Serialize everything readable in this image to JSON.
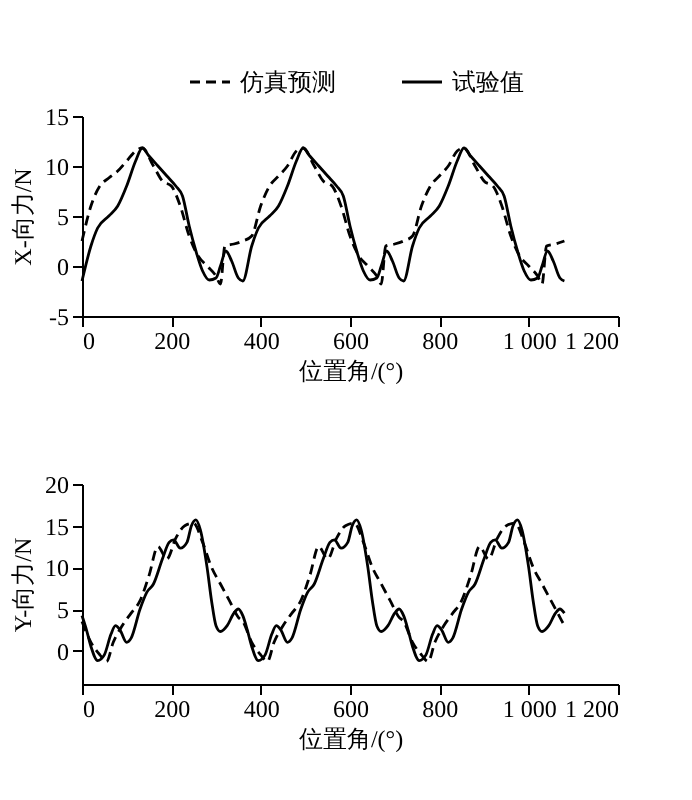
{
  "chart_data": [
    {
      "type": "line",
      "xlabel": "位置角/(°)",
      "ylabel": "X-向力/N",
      "xlim": [
        0,
        1200
      ],
      "xticks": [
        0,
        200,
        400,
        600,
        800,
        {
          "value": 1000,
          "label": "1 000"
        },
        {
          "value": 1200,
          "label": "1 200"
        }
      ],
      "ylim": [
        -5,
        15
      ],
      "yticks": [
        -5,
        0,
        5,
        10,
        15
      ],
      "grid": false,
      "legend": "top right",
      "series": [
        {
          "name": "仿真预测",
          "color": "#000000",
          "line_style": "dashed",
          "x": [
            0,
            20,
            40,
            60,
            80,
            100,
            120,
            135,
            160,
            180,
            200,
            220,
            240,
            260,
            280,
            300,
            310,
            320,
            340,
            360,
            380,
            400,
            420,
            440,
            460,
            480,
            495,
            520,
            540,
            560,
            580,
            600,
            620,
            640,
            660,
            670,
            680,
            700,
            720,
            740,
            760,
            780,
            800,
            820,
            840,
            855,
            880,
            900,
            920,
            940,
            960,
            980,
            1000,
            1020,
            1030,
            1040,
            1060,
            1080
          ],
          "values": [
            2.5,
            6,
            8,
            8.8,
            9.5,
            10.5,
            11.5,
            11.8,
            10,
            8.5,
            8,
            6,
            3,
            1,
            0,
            -1,
            -1.8,
            2,
            2.2,
            2.5,
            3,
            6,
            8,
            9,
            10,
            11.5,
            11.8,
            10,
            8.5,
            8,
            6,
            3,
            1,
            0,
            -1,
            -1.8,
            2,
            2.2,
            2.5,
            3,
            6,
            8,
            9,
            10,
            11.5,
            11.8,
            10,
            8.5,
            8,
            6,
            3,
            1,
            0,
            -1,
            -1.8,
            2,
            2.2,
            2.5
          ]
        },
        {
          "name": "试验值",
          "color": "#000000",
          "line_style": "solid",
          "x": [
            0,
            20,
            35,
            60,
            80,
            100,
            120,
            135,
            150,
            170,
            190,
            210,
            225,
            240,
            255,
            270,
            285,
            300,
            310,
            322,
            335,
            350,
            360,
            380,
            395,
            420,
            440,
            460,
            480,
            495,
            510,
            530,
            550,
            570,
            585,
            600,
            615,
            630,
            645,
            660,
            670,
            682,
            695,
            710,
            720,
            740,
            755,
            780,
            800,
            820,
            840,
            855,
            870,
            890,
            910,
            930,
            945,
            960,
            975,
            990,
            1005,
            1020,
            1030,
            1042,
            1055,
            1070,
            1080
          ],
          "values": [
            -1.5,
            2,
            3.8,
            5,
            6,
            8,
            10.5,
            11.8,
            11,
            10,
            9,
            8,
            7,
            4,
            1.5,
            -0.5,
            -1.4,
            -1.2,
            0,
            1.5,
            0.5,
            -1.2,
            -1.5,
            2,
            3.8,
            5,
            6,
            8,
            10.5,
            11.8,
            11,
            10,
            9,
            8,
            7,
            4,
            1.5,
            -0.5,
            -1.4,
            -1.2,
            0,
            1.5,
            0.5,
            -1.2,
            -1.5,
            2,
            3.8,
            5,
            6,
            8,
            10.5,
            11.8,
            11,
            10,
            9,
            8,
            7,
            4,
            1.5,
            -0.5,
            -1.4,
            -1.2,
            0,
            1.5,
            0.5,
            -1.2,
            -1.5
          ]
        }
      ]
    },
    {
      "type": "line",
      "xlabel": "位置角/(°)",
      "ylabel": "Y-向力/N",
      "xlim": [
        0,
        1200
      ],
      "xticks": [
        0,
        200,
        400,
        600,
        800,
        {
          "value": 1000,
          "label": "1 000"
        },
        {
          "value": 1200,
          "label": "1 200"
        }
      ],
      "ylim": [
        -4,
        20
      ],
      "yticks": [
        0,
        5,
        10,
        15,
        20
      ],
      "grid": false,
      "legend": "top right",
      "series": [
        {
          "name": "仿真预测",
          "color": "#000000",
          "line_style": "dashed",
          "x": [
            0,
            20,
            40,
            55,
            70,
            90,
            110,
            130,
            150,
            170,
            190,
            210,
            230,
            250,
            270,
            290,
            310,
            330,
            350,
            360,
            380,
            400,
            415,
            430,
            450,
            470,
            490,
            510,
            530,
            550,
            570,
            590,
            610,
            630,
            650,
            670,
            690,
            710,
            720,
            740,
            760,
            775,
            790,
            810,
            830,
            850,
            870,
            890,
            910,
            930,
            950,
            970,
            990,
            1010,
            1030,
            1050,
            1070,
            1080
          ],
          "values": [
            3.5,
            1,
            -0.5,
            -1.3,
            1,
            3,
            4.5,
            6,
            9,
            12.5,
            11,
            13.5,
            15,
            15.3,
            13,
            10,
            8,
            6,
            4,
            3.5,
            1,
            -0.5,
            -1.3,
            1,
            3,
            4.5,
            6,
            9,
            12.5,
            11,
            13.5,
            15,
            15.3,
            13,
            10,
            8,
            6,
            4,
            3.5,
            1,
            -0.5,
            -1.3,
            1,
            3,
            4.5,
            6,
            9,
            12.5,
            11,
            13.5,
            15,
            15.3,
            13,
            10,
            8,
            6,
            4,
            3
          ]
        },
        {
          "name": "试验值",
          "color": "#000000",
          "line_style": "solid",
          "x": [
            0,
            10,
            20,
            35,
            50,
            65,
            75,
            85,
            100,
            110,
            130,
            145,
            160,
            180,
            195,
            205,
            220,
            235,
            245,
            255,
            265,
            280,
            290,
            300,
            310,
            325,
            340,
            350,
            360,
            370,
            380,
            395,
            410,
            425,
            435,
            445,
            460,
            470,
            490,
            505,
            520,
            540,
            555,
            565,
            580,
            595,
            605,
            615,
            625,
            640,
            650,
            660,
            670,
            685,
            700,
            710,
            720,
            730,
            740,
            755,
            770,
            785,
            795,
            805,
            820,
            830,
            850,
            865,
            880,
            900,
            915,
            925,
            940,
            955,
            965,
            975,
            985,
            1000,
            1010,
            1020,
            1030,
            1045,
            1060,
            1070,
            1080
          ],
          "values": [
            4.2,
            2.5,
            0.5,
            -1.2,
            -0.5,
            2,
            3,
            2.5,
            1,
            1.5,
            5,
            7,
            8,
            11,
            13,
            13.3,
            12.3,
            13,
            15,
            15.7,
            14.5,
            10,
            6,
            3,
            2.3,
            3,
            4.5,
            5,
            4.2,
            2.5,
            0.5,
            -1.2,
            -0.5,
            2,
            3,
            2.5,
            1,
            1.5,
            5,
            7,
            8,
            11,
            13,
            13.3,
            12.3,
            13,
            15,
            15.7,
            14.5,
            10,
            6,
            3,
            2.3,
            3,
            4.5,
            5,
            4.2,
            2.5,
            0.5,
            -1.2,
            -0.5,
            2,
            3,
            2.5,
            1,
            1.5,
            5,
            7,
            8,
            11,
            13,
            13.3,
            12.3,
            13,
            15,
            15.7,
            14.5,
            10,
            6,
            3,
            2.3,
            3,
            4.5,
            5,
            4.5
          ]
        }
      ]
    }
  ]
}
